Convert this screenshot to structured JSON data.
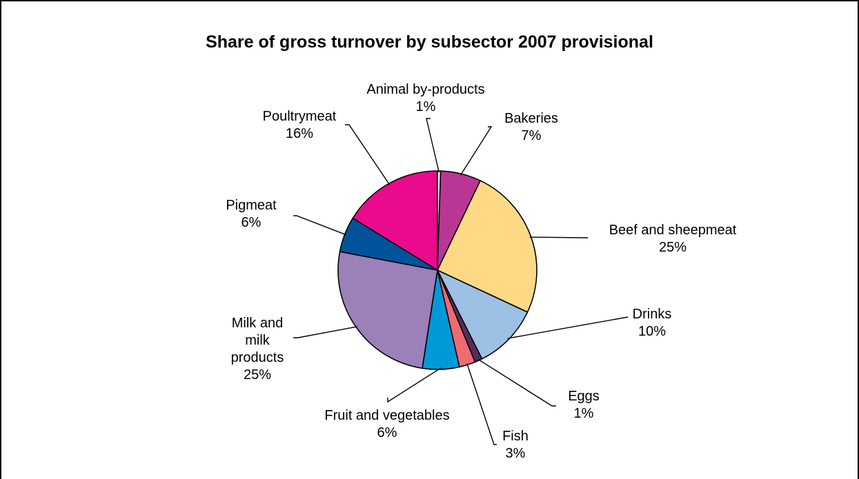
{
  "chart_data": {
    "type": "pie",
    "title": "Share of gross turnover by subsector 2007 provisional",
    "slices": [
      {
        "label": [
          "Animal by-products"
        ],
        "pct": "1%",
        "value": 0.5,
        "color": "#ffffff"
      },
      {
        "label": [
          "Bakeries"
        ],
        "pct": "7%",
        "value": 6.5,
        "color": "#b93695"
      },
      {
        "label": [
          "Beef and sheepmeat"
        ],
        "pct": "25%",
        "value": 24.5,
        "color": "#ffd985"
      },
      {
        "label": [
          "Drinks"
        ],
        "pct": "10%",
        "value": 10.5,
        "color": "#9cc1e5"
      },
      {
        "label": [
          "Eggs"
        ],
        "pct": "1%",
        "value": 1.2,
        "color": "#5a2a5e"
      },
      {
        "label": [
          "Fish"
        ],
        "pct": "3%",
        "value": 2.6,
        "color": "#f06a72"
      },
      {
        "label": [
          "Fruit and vegetables"
        ],
        "pct": "6%",
        "value": 5.9,
        "color": "#0099d8"
      },
      {
        "label": [
          "Milk and",
          "milk",
          "products"
        ],
        "pct": "25%",
        "value": 25.2,
        "color": "#9b80ba"
      },
      {
        "label": [
          "Pigmeat"
        ],
        "pct": "6%",
        "value": 5.7,
        "color": "#00539b"
      },
      {
        "label": [
          "Poultrymeat"
        ],
        "pct": "16%",
        "value": 16.0,
        "color": "#ea0a8c"
      }
    ]
  }
}
